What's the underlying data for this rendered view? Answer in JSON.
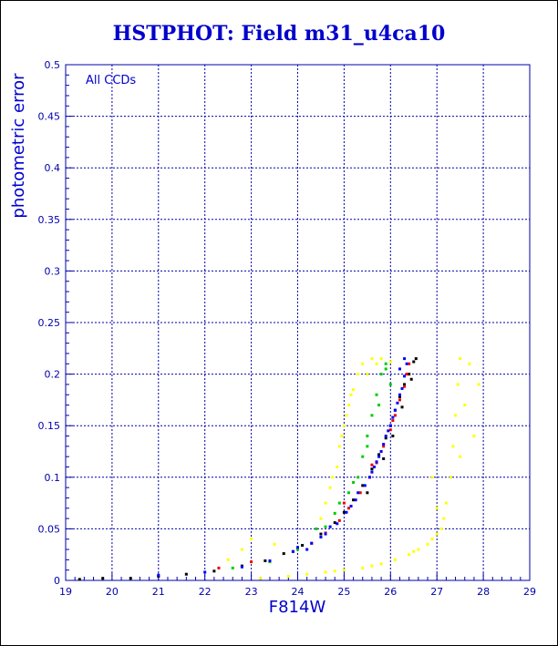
{
  "chart_data": {
    "type": "scatter",
    "title": "HSTPHOT: Field m31_u4ca10",
    "xlabel": "F814W",
    "ylabel": "photometric error",
    "annotation": "All CCDs",
    "xlim": [
      19,
      29
    ],
    "ylim": [
      0,
      0.5
    ],
    "x_ticks": [
      "19",
      "20",
      "21",
      "22",
      "23",
      "24",
      "25",
      "26",
      "27",
      "28",
      "29"
    ],
    "y_ticks": [
      "0",
      "0.05",
      "0.1",
      "0.15",
      "0.2",
      "0.25",
      "0.3",
      "0.35",
      "0.4",
      "0.45",
      "0.5"
    ],
    "grid": true,
    "series": [
      {
        "color": "#000000",
        "points": [
          [
            19.3,
            0.001
          ],
          [
            19.8,
            0.002
          ],
          [
            20.4,
            0.002
          ],
          [
            21.0,
            0.004
          ],
          [
            21.6,
            0.006
          ],
          [
            22.2,
            0.009
          ],
          [
            22.8,
            0.014
          ],
          [
            23.3,
            0.019
          ],
          [
            23.7,
            0.026
          ],
          [
            24.1,
            0.034
          ],
          [
            24.5,
            0.045
          ],
          [
            24.8,
            0.056
          ],
          [
            25.0,
            0.066
          ],
          [
            25.2,
            0.078
          ],
          [
            25.4,
            0.092
          ],
          [
            25.6,
            0.108
          ],
          [
            25.75,
            0.122
          ],
          [
            25.9,
            0.138
          ],
          [
            26.0,
            0.15
          ],
          [
            26.1,
            0.165
          ],
          [
            26.2,
            0.178
          ],
          [
            26.3,
            0.19
          ],
          [
            26.4,
            0.2
          ],
          [
            26.5,
            0.212
          ],
          [
            26.55,
            0.215
          ],
          [
            25.5,
            0.085
          ],
          [
            25.85,
            0.118
          ],
          [
            26.05,
            0.14
          ],
          [
            26.25,
            0.168
          ],
          [
            26.45,
            0.195
          ]
        ]
      },
      {
        "color": "#ee0000",
        "points": [
          [
            23.9,
            0.028
          ],
          [
            24.3,
            0.036
          ],
          [
            24.6,
            0.046
          ],
          [
            24.9,
            0.058
          ],
          [
            25.1,
            0.07
          ],
          [
            25.35,
            0.085
          ],
          [
            25.55,
            0.1
          ],
          [
            25.7,
            0.114
          ],
          [
            25.85,
            0.13
          ],
          [
            26.0,
            0.146
          ],
          [
            26.1,
            0.16
          ],
          [
            26.2,
            0.175
          ],
          [
            26.3,
            0.188
          ],
          [
            26.35,
            0.2
          ],
          [
            26.4,
            0.21
          ],
          [
            25.0,
            0.075
          ],
          [
            25.6,
            0.112
          ],
          [
            26.05,
            0.155
          ],
          [
            23.0,
            0.018
          ],
          [
            22.3,
            0.012
          ]
        ]
      },
      {
        "color": "#00cc00",
        "points": [
          [
            22.6,
            0.012
          ],
          [
            23.4,
            0.018
          ],
          [
            24.0,
            0.03
          ],
          [
            24.6,
            0.052
          ],
          [
            24.9,
            0.075
          ],
          [
            25.1,
            0.085
          ],
          [
            25.3,
            0.1
          ],
          [
            25.4,
            0.12
          ],
          [
            25.5,
            0.14
          ],
          [
            25.6,
            0.16
          ],
          [
            25.7,
            0.18
          ],
          [
            25.8,
            0.2
          ],
          [
            25.9,
            0.21
          ],
          [
            24.8,
            0.065
          ],
          [
            25.2,
            0.095
          ],
          [
            25.5,
            0.13
          ],
          [
            25.75,
            0.17
          ],
          [
            26.0,
            0.19
          ],
          [
            24.4,
            0.05
          ],
          [
            25.9,
            0.205
          ]
        ]
      },
      {
        "color": "#0000ff",
        "points": [
          [
            21.0,
            0.005
          ],
          [
            22.0,
            0.008
          ],
          [
            22.8,
            0.013
          ],
          [
            23.4,
            0.019
          ],
          [
            23.9,
            0.028
          ],
          [
            24.3,
            0.036
          ],
          [
            24.6,
            0.045
          ],
          [
            24.85,
            0.055
          ],
          [
            25.05,
            0.066
          ],
          [
            25.25,
            0.078
          ],
          [
            25.45,
            0.092
          ],
          [
            25.6,
            0.105
          ],
          [
            25.75,
            0.12
          ],
          [
            25.85,
            0.132
          ],
          [
            25.95,
            0.145
          ],
          [
            26.05,
            0.158
          ],
          [
            26.15,
            0.172
          ],
          [
            26.25,
            0.186
          ],
          [
            26.3,
            0.198
          ],
          [
            26.35,
            0.21
          ],
          [
            26.3,
            0.215
          ],
          [
            24.2,
            0.03
          ],
          [
            24.7,
            0.052
          ],
          [
            25.15,
            0.072
          ],
          [
            25.55,
            0.1
          ],
          [
            25.8,
            0.125
          ],
          [
            26.0,
            0.15
          ],
          [
            26.2,
            0.18
          ],
          [
            25.7,
            0.115
          ],
          [
            25.9,
            0.14
          ],
          [
            26.1,
            0.165
          ],
          [
            26.2,
            0.205
          ],
          [
            24.0,
            0.032
          ],
          [
            24.5,
            0.042
          ],
          [
            25.3,
            0.085
          ],
          [
            25.65,
            0.11
          ]
        ]
      },
      {
        "color": "#ffff00",
        "points": [
          [
            23.2,
            0.002
          ],
          [
            23.8,
            0.004
          ],
          [
            24.2,
            0.006
          ],
          [
            24.6,
            0.008
          ],
          [
            25.0,
            0.01
          ],
          [
            25.4,
            0.012
          ],
          [
            25.8,
            0.016
          ],
          [
            26.1,
            0.02
          ],
          [
            26.4,
            0.025
          ],
          [
            26.6,
            0.03
          ],
          [
            26.8,
            0.035
          ],
          [
            26.9,
            0.04
          ],
          [
            27.0,
            0.045
          ],
          [
            27.1,
            0.05
          ],
          [
            27.15,
            0.06
          ],
          [
            27.2,
            0.075
          ],
          [
            27.3,
            0.1
          ],
          [
            27.35,
            0.13
          ],
          [
            27.4,
            0.16
          ],
          [
            27.45,
            0.19
          ],
          [
            27.5,
            0.215
          ],
          [
            27.7,
            0.21
          ],
          [
            27.9,
            0.19
          ],
          [
            27.6,
            0.17
          ],
          [
            27.5,
            0.12
          ],
          [
            26.9,
            0.1
          ],
          [
            27.0,
            0.07
          ],
          [
            22.5,
            0.02
          ],
          [
            22.8,
            0.03
          ],
          [
            23.5,
            0.035
          ],
          [
            24.5,
            0.06
          ],
          [
            24.7,
            0.09
          ],
          [
            24.85,
            0.11
          ],
          [
            24.9,
            0.13
          ],
          [
            25.0,
            0.15
          ],
          [
            25.1,
            0.17
          ],
          [
            25.2,
            0.185
          ],
          [
            25.3,
            0.2
          ],
          [
            25.4,
            0.21
          ],
          [
            25.6,
            0.215
          ],
          [
            25.8,
            0.215
          ],
          [
            24.6,
            0.075
          ],
          [
            24.75,
            0.1
          ],
          [
            24.95,
            0.14
          ],
          [
            25.05,
            0.16
          ],
          [
            25.15,
            0.18
          ],
          [
            25.5,
            0.2
          ],
          [
            25.7,
            0.21
          ],
          [
            26.0,
            0.212
          ],
          [
            23.0,
            0.04
          ],
          [
            27.8,
            0.14
          ],
          [
            26.5,
            0.028
          ],
          [
            25.6,
            0.014
          ],
          [
            24.8,
            0.009
          ]
        ]
      }
    ]
  }
}
